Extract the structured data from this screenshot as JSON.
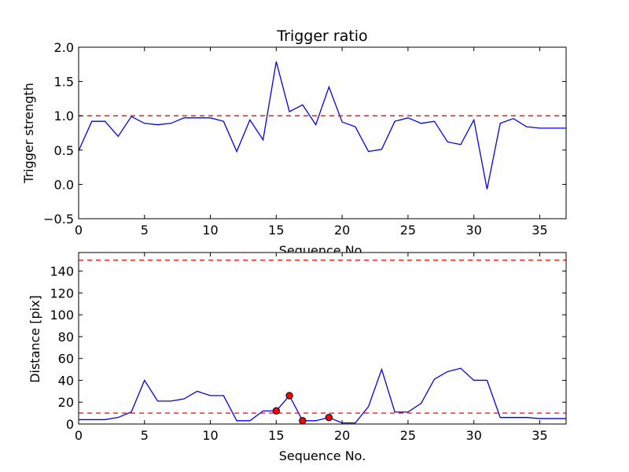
{
  "chart_data": [
    {
      "type": "line",
      "title": "Trigger ratio",
      "xlabel": "Sequence No.",
      "ylabel": "Trigger strength",
      "xlim": [
        0,
        37
      ],
      "ylim": [
        -0.5,
        2.0
      ],
      "xticks": [
        0,
        5,
        10,
        15,
        20,
        25,
        30,
        35
      ],
      "xtick_labels": [
        "0",
        "5",
        "10",
        "15",
        "20",
        "25",
        "30",
        "35"
      ],
      "yticks": [
        -0.5,
        0.0,
        0.5,
        1.0,
        1.5,
        2.0
      ],
      "ytick_labels": [
        "−0.5",
        "0.0",
        "0.5",
        "1.0",
        "1.5",
        "2.0"
      ],
      "grid": false,
      "series": [
        {
          "color": "#0000ff",
          "style": "solid",
          "x": [
            0,
            1,
            2,
            3,
            4,
            5,
            6,
            7,
            8,
            9,
            10,
            11,
            12,
            13,
            14,
            15,
            16,
            17,
            18,
            19,
            20,
            21,
            22,
            23,
            24,
            25,
            26,
            27,
            28,
            29,
            30,
            31,
            32,
            33,
            34,
            35,
            36,
            37
          ],
          "y": [
            0.49,
            0.92,
            0.92,
            0.7,
            0.99,
            0.89,
            0.87,
            0.89,
            0.97,
            0.97,
            0.97,
            0.92,
            0.48,
            0.94,
            0.65,
            1.79,
            1.06,
            1.16,
            0.87,
            1.42,
            0.91,
            0.84,
            0.48,
            0.51,
            0.92,
            0.97,
            0.89,
            0.92,
            0.62,
            0.58,
            0.94,
            -0.07,
            0.89,
            0.96,
            0.84,
            0.82,
            0.82,
            0.82
          ]
        }
      ],
      "hlines": [
        {
          "y": 1.0,
          "color": "#ff0000",
          "style": "dashed"
        }
      ],
      "markers": []
    },
    {
      "type": "line",
      "title": "",
      "xlabel": "Sequence No.",
      "ylabel": "Distance [pix]",
      "xlim": [
        0,
        37
      ],
      "ylim": [
        0,
        157
      ],
      "xticks": [
        0,
        5,
        10,
        15,
        20,
        25,
        30,
        35
      ],
      "xtick_labels": [
        "0",
        "5",
        "10",
        "15",
        "20",
        "25",
        "30",
        "35"
      ],
      "yticks": [
        0,
        20,
        40,
        60,
        80,
        100,
        120,
        140
      ],
      "ytick_labels": [
        "0",
        "20",
        "40",
        "60",
        "80",
        "100",
        "120",
        "140"
      ],
      "grid": false,
      "series": [
        {
          "color": "#0000ff",
          "style": "solid",
          "x": [
            0,
            1,
            2,
            3,
            4,
            5,
            6,
            7,
            8,
            9,
            10,
            11,
            12,
            13,
            14,
            15,
            16,
            17,
            18,
            19,
            20,
            21,
            22,
            23,
            24,
            25,
            26,
            27,
            28,
            29,
            30,
            31,
            32,
            33,
            34,
            35,
            36,
            37
          ],
          "y": [
            4,
            4,
            4,
            6,
            11,
            40,
            21,
            21,
            23,
            30,
            26,
            26,
            3,
            3,
            12,
            12,
            26,
            3,
            3,
            6,
            1,
            1,
            16,
            50,
            11,
            11,
            19,
            41,
            48,
            51,
            40,
            40,
            6,
            6,
            6,
            5,
            5,
            5
          ]
        }
      ],
      "hlines": [
        {
          "y": 150,
          "color": "#ff0000",
          "style": "dashed"
        },
        {
          "y": 10,
          "color": "#ff0000",
          "style": "dashed"
        }
      ],
      "markers": [
        {
          "x": 15,
          "y": 12,
          "color": "#ff0000"
        },
        {
          "x": 16,
          "y": 26,
          "color": "#ff0000"
        },
        {
          "x": 17,
          "y": 3,
          "color": "#ff0000"
        },
        {
          "x": 19,
          "y": 6,
          "color": "#ff0000"
        }
      ]
    }
  ]
}
